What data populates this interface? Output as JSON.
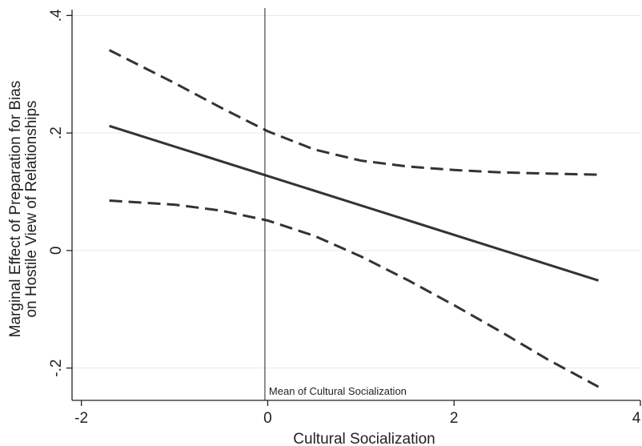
{
  "chart_data": {
    "type": "line",
    "title": "",
    "xlabel": "Cultural Socialization",
    "ylabel_lines": [
      "Marginal Effect of Preparation for Bias",
      "on Hostile View of Relationships"
    ],
    "xlim": [
      -2.1,
      4
    ],
    "ylim": [
      -0.255,
      0.41
    ],
    "x_ticks": [
      -2,
      0,
      2,
      4
    ],
    "x_tick_labels": [
      "-2",
      "0",
      "2",
      "4"
    ],
    "y_ticks": [
      -0.2,
      0,
      0.2,
      0.4
    ],
    "y_tick_labels": [
      "-.2",
      "0",
      ".2",
      ".4"
    ],
    "grid": "horizontal",
    "legend": "none",
    "series": [
      {
        "style": "solid",
        "x": [
          -1.7,
          3.55
        ],
        "y": [
          0.212,
          -0.051
        ]
      },
      {
        "style": "dashed",
        "x": [
          -1.7,
          -1.0,
          -0.5,
          0.0,
          0.5,
          1.0,
          1.5,
          2.0,
          2.5,
          3.0,
          3.55
        ],
        "y": [
          0.341,
          0.285,
          0.243,
          0.203,
          0.172,
          0.153,
          0.143,
          0.137,
          0.133,
          0.131,
          0.129
        ]
      },
      {
        "style": "dashed",
        "x": [
          -1.7,
          -1.0,
          -0.5,
          0.0,
          0.5,
          1.0,
          1.5,
          2.0,
          2.5,
          3.0,
          3.55
        ],
        "y": [
          0.085,
          0.078,
          0.068,
          0.051,
          0.025,
          -0.01,
          -0.05,
          -0.093,
          -0.138,
          -0.185,
          -0.232
        ]
      }
    ],
    "reference_line": {
      "x": -0.03,
      "label": "Mean of Cultural Socialization"
    },
    "colors": {
      "line": "#333333",
      "grid": "#e6e6e6",
      "axis": "#222222"
    }
  }
}
